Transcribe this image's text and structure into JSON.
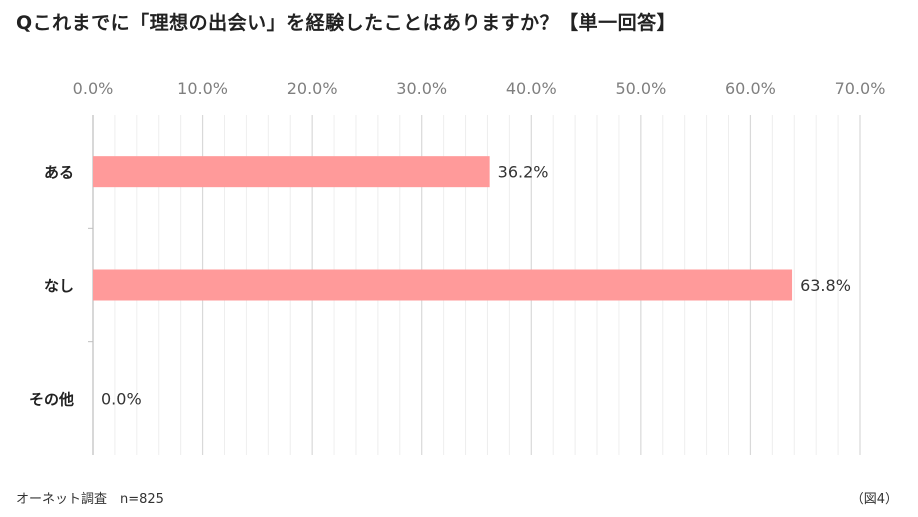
{
  "title": "Qこれまでに「理想の出会い」を経験したことはありますか？【単一回答】",
  "footer": {
    "source": "オーネット調査　n=825",
    "figure_label": "（図4）"
  },
  "chart_data": {
    "type": "bar",
    "orientation": "horizontal",
    "title": "Qこれまでに「理想の出会い」を経験したことはありますか？【単一回答】",
    "categories": [
      "ある",
      "なし",
      "その他"
    ],
    "values": [
      36.2,
      63.8,
      0.0
    ],
    "data_labels": [
      "36.2%",
      "63.8%",
      "0.0%"
    ],
    "xlim": [
      0,
      70
    ],
    "x_ticks": [
      0,
      10,
      20,
      30,
      40,
      50,
      60,
      70
    ],
    "x_tick_labels": [
      "0.0%",
      "10.0%",
      "20.0%",
      "30.0%",
      "40.0%",
      "50.0%",
      "60.0%",
      "70.0%"
    ],
    "x_axis_position": "top",
    "grid": true,
    "legend": "none",
    "bar_color": "#ff9a9a",
    "grid_color": "#d9d9d9",
    "minor_grid_color": "#eeeeee"
  }
}
